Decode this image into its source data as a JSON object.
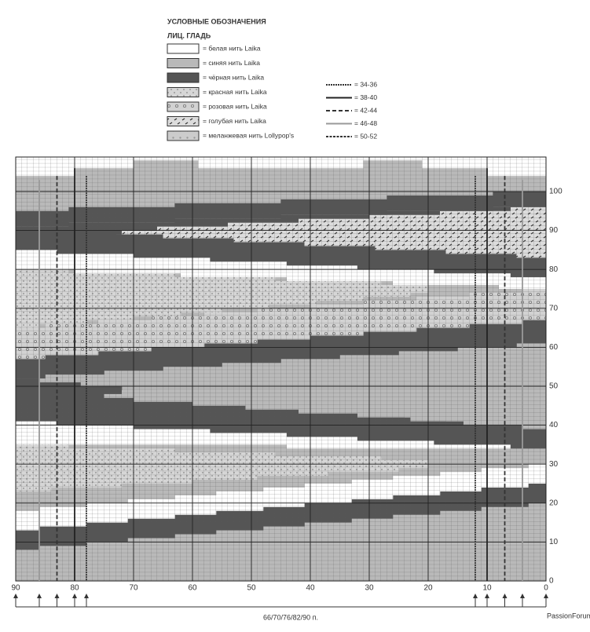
{
  "legend": {
    "title": "УСЛОВНЫЕ ОБОЗНАЧЕНИЯ",
    "subtitle": "ЛИЦ. ГЛАДЬ",
    "items": [
      "= белая нить Laika",
      "= синяя нить Laika",
      "= чёрная нить Laika",
      "= красная нить Laika",
      "= розовая нить Laika",
      "= голубая нить Laika",
      "= меланжевая нить Lollypop's"
    ],
    "sizes": [
      "= 34-36",
      "= 38-40",
      "= 42-44",
      "= 46-48",
      "= 50-52"
    ]
  },
  "chart": {
    "row_labels": [
      "100",
      "90",
      "80",
      "70",
      "60",
      "50",
      "40",
      "30",
      "20",
      "10",
      "0"
    ],
    "stitch_labels": [
      "90",
      "80",
      "70",
      "60",
      "50",
      "40",
      "30",
      "20",
      "10",
      "0"
    ],
    "footer": "66/70/76/82/90 п."
  },
  "watermark": "PassionForum.ru"
}
